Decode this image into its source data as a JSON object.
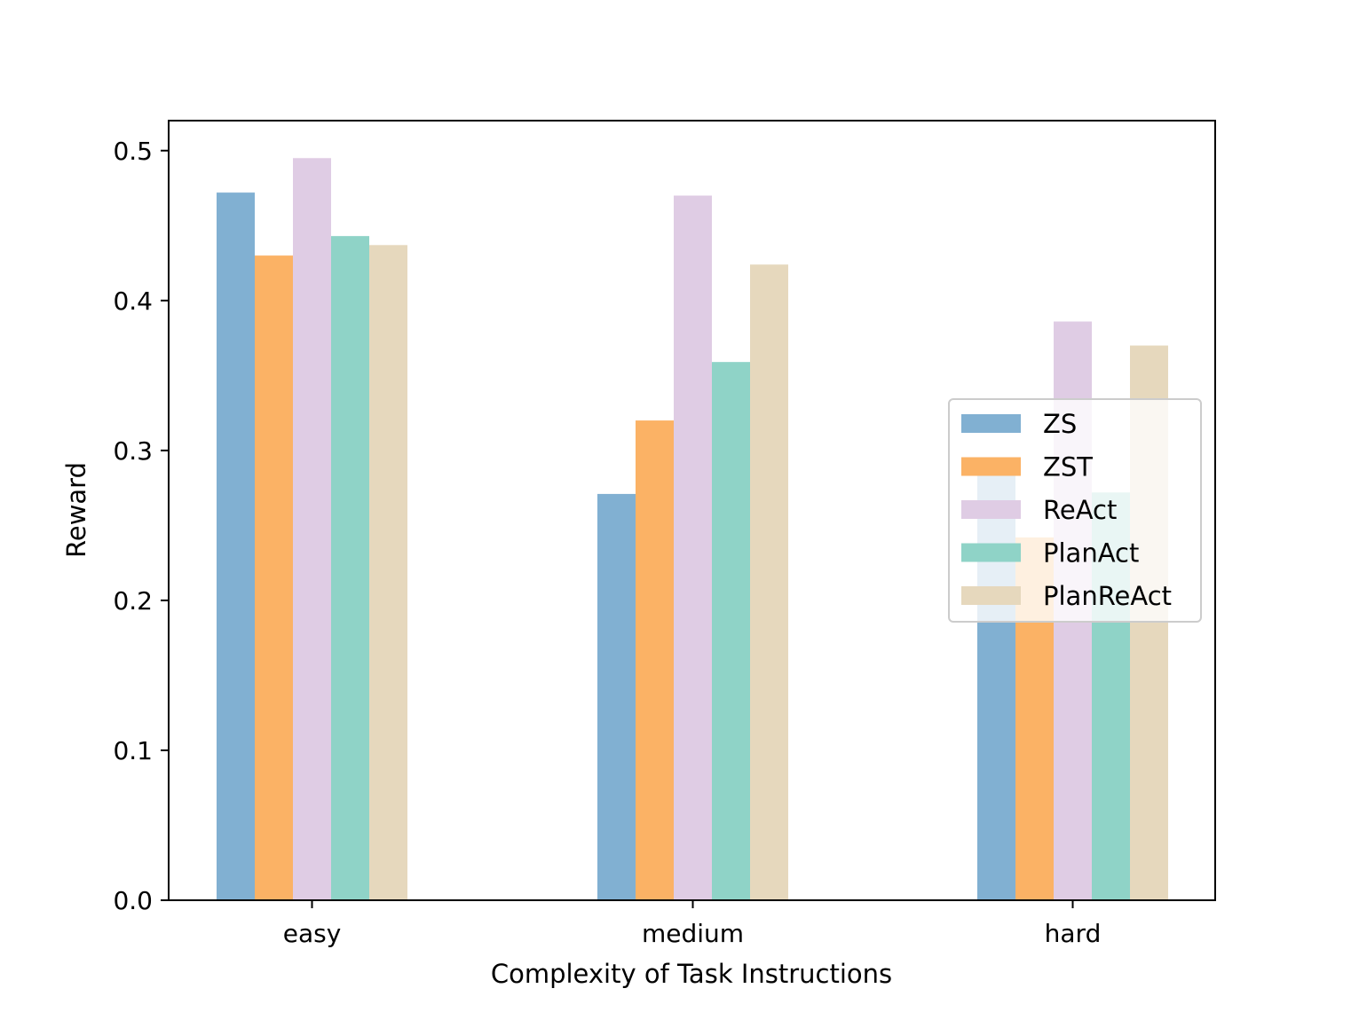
{
  "chart_data": {
    "type": "bar",
    "title": "",
    "xlabel": "Complexity of Task Instructions",
    "ylabel": "Reward",
    "categories": [
      "easy",
      "medium",
      "hard"
    ],
    "series": [
      {
        "name": "ZS",
        "color": "#81b0d2",
        "values": [
          0.472,
          0.271,
          0.289
        ]
      },
      {
        "name": "ZST",
        "color": "#fbb265",
        "values": [
          0.43,
          0.32,
          0.242
        ]
      },
      {
        "name": "ReAct",
        "color": "#dfcce4",
        "values": [
          0.495,
          0.47,
          0.386
        ]
      },
      {
        "name": "PlanAct",
        "color": "#8fd3c7",
        "values": [
          0.443,
          0.359,
          0.272
        ]
      },
      {
        "name": "PlanReAct",
        "color": "#e6d8bd",
        "values": [
          0.437,
          0.424,
          0.37
        ]
      }
    ],
    "ylim": [
      0,
      0.52
    ],
    "yticks": [
      0.0,
      0.1,
      0.2,
      0.3,
      0.4,
      0.5
    ],
    "ytick_labels": [
      "0.0",
      "0.1",
      "0.2",
      "0.3",
      "0.4",
      "0.5"
    ],
    "grid": false,
    "legend_position": "center-right"
  }
}
